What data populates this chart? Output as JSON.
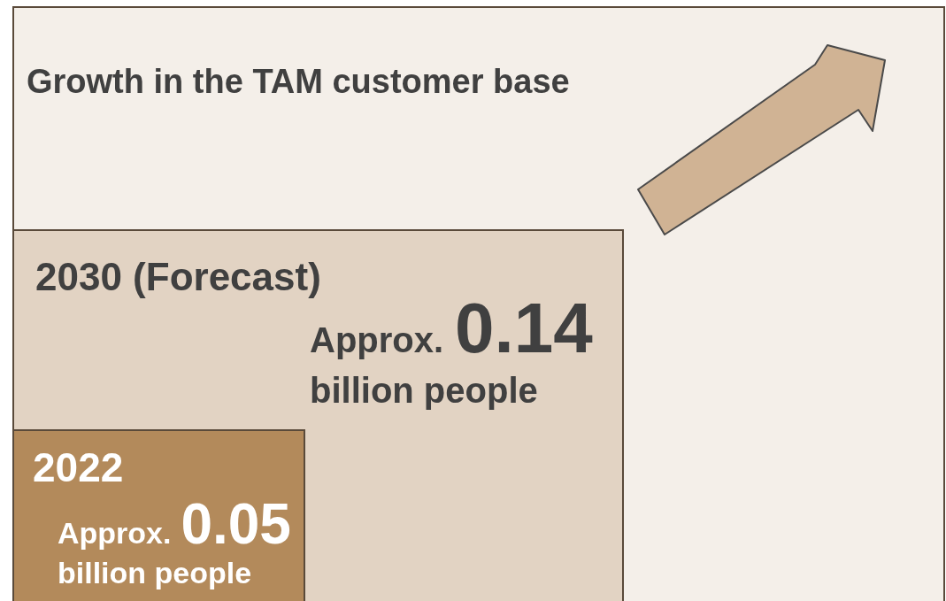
{
  "chart_data": {
    "type": "other",
    "title": "Growth in the TAM customer base",
    "categories": [
      "2030 (Forecast)",
      "2022"
    ],
    "values": [
      0.14,
      0.05
    ],
    "data_labels": true,
    "annotations": [
      "Approx.",
      "billion people",
      "Approx.",
      "billion people"
    ],
    "colors": [
      "#e2d3c3",
      "#b38a5b"
    ]
  }
}
